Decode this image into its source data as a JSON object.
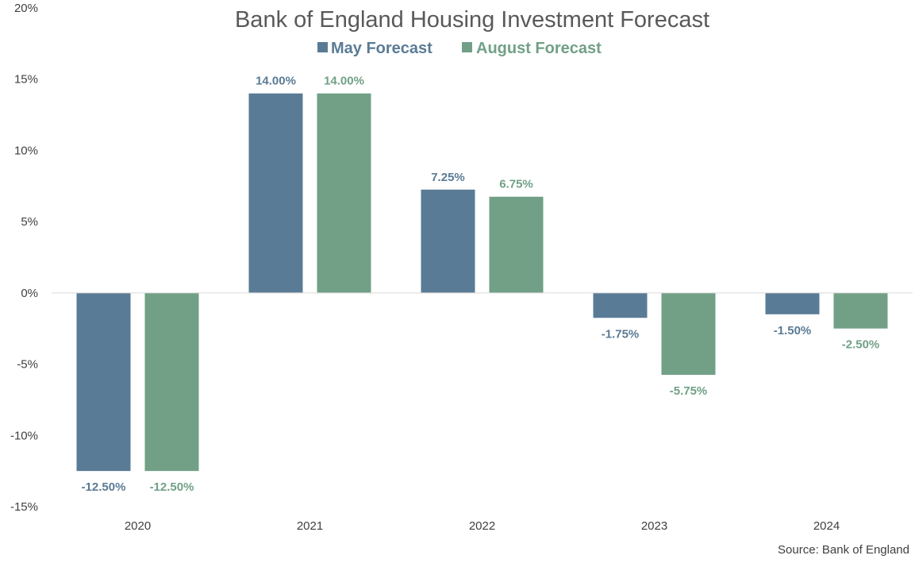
{
  "chart_data": {
    "type": "bar",
    "title": "Bank of England Housing Investment Forecast",
    "source": "Source: Bank of England",
    "categories": [
      "2020",
      "2021",
      "2022",
      "2023",
      "2024"
    ],
    "series": [
      {
        "name": "May Forecast",
        "color": "#5a7b95",
        "values": [
          -12.5,
          14.0,
          7.25,
          -1.75,
          -1.5
        ]
      },
      {
        "name": "August Forecast",
        "color": "#71a086",
        "values": [
          -12.5,
          14.0,
          6.75,
          -5.75,
          -2.5
        ]
      }
    ],
    "data_labels": [
      [
        "-12.50%",
        "14.00%",
        "7.25%",
        "-1.75%",
        "-1.50%"
      ],
      [
        "-12.50%",
        "14.00%",
        "6.75%",
        "-5.75%",
        "-2.50%"
      ]
    ],
    "ylim": [
      -15,
      20
    ],
    "yticks": [
      -15,
      -10,
      -5,
      0,
      5,
      10,
      15,
      20
    ],
    "ytick_labels": [
      "-15%",
      "-10%",
      "-5%",
      "0%",
      "5%",
      "10%",
      "15%",
      "20%"
    ],
    "legend_position": "top",
    "grid": false
  }
}
